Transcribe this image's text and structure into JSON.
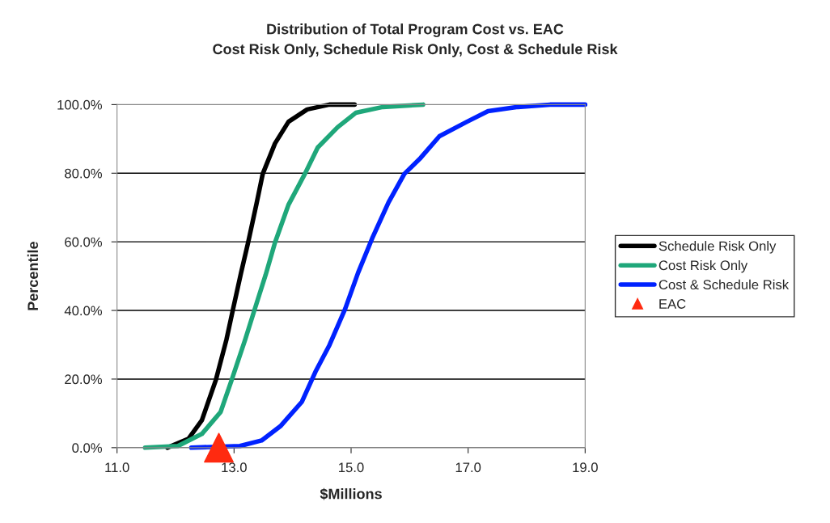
{
  "chart_data": {
    "type": "line",
    "title": "Distribution of Total Program Cost vs. EAC\nCost Risk Only, Schedule Risk Only, Cost & Schedule Risk",
    "xlabel": "$Millions",
    "ylabel": "Percentile",
    "xlim": [
      11,
      19
    ],
    "xticks": [
      {
        "value": 11,
        "label": "11.0"
      },
      {
        "value": 13,
        "label": "13.0"
      },
      {
        "value": 15,
        "label": "15.0"
      },
      {
        "value": 17,
        "label": "17.0"
      },
      {
        "value": 19,
        "label": "19.0"
      }
    ],
    "ylim": [
      0,
      100
    ],
    "yticks": [
      {
        "value": 0,
        "label": "0.0%"
      },
      {
        "value": 20,
        "label": "20.0%"
      },
      {
        "value": 40,
        "label": "40.0%"
      },
      {
        "value": 60,
        "label": "60.0%"
      },
      {
        "value": 80,
        "label": "80.0%"
      },
      {
        "value": 100,
        "label": "100.0%"
      }
    ],
    "grid": "y",
    "legend": "right",
    "marker": "none",
    "line_style": "solid",
    "series": [
      {
        "name": "Schedule Risk Only",
        "color": "#000000",
        "x": [
          11.86,
          12.22,
          12.45,
          12.69,
          12.87,
          12.98,
          13.12,
          13.24,
          13.38,
          13.49,
          13.7,
          13.93,
          14.25,
          14.63,
          15.06
        ],
        "values": [
          0,
          2.6,
          8,
          19.8,
          31.5,
          40.2,
          51,
          59.8,
          70.8,
          79.8,
          88.7,
          95,
          98.6,
          100,
          100
        ]
      },
      {
        "name": "Cost Risk Only",
        "color": "#1fa77a",
        "x": [
          11.48,
          12.04,
          12.45,
          12.77,
          12.96,
          13.19,
          13.35,
          13.54,
          13.7,
          13.93,
          14.21,
          14.43,
          14.77,
          15.08,
          15.54,
          16.23
        ],
        "values": [
          0,
          0.5,
          4,
          10.4,
          19.8,
          31.5,
          40.2,
          50.4,
          59.8,
          70.8,
          79.8,
          87.5,
          93.4,
          97.6,
          99.3,
          100
        ]
      },
      {
        "name": "Cost & Schedule Risk",
        "color": "#0022ff",
        "x": [
          12.27,
          13.1,
          13.47,
          13.8,
          14.16,
          14.39,
          14.63,
          14.9,
          15.12,
          15.36,
          15.64,
          15.91,
          16.19,
          16.51,
          16.98,
          17.34,
          17.85,
          18.4,
          19.0
        ],
        "values": [
          0,
          0.5,
          2.1,
          6.4,
          13.4,
          22.1,
          29.9,
          40.5,
          51,
          61,
          71.5,
          79.8,
          84.5,
          90.8,
          95,
          98.1,
          99.3,
          100,
          100
        ]
      },
      {
        "name": "EAC",
        "type": "scatter",
        "marker": "triangle",
        "color": "#ff2a10",
        "x": [
          12.74
        ],
        "values": [
          0
        ]
      }
    ]
  }
}
